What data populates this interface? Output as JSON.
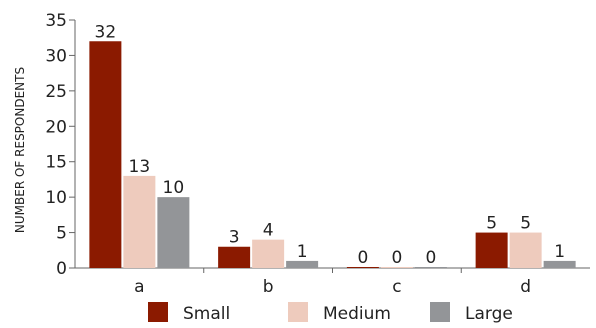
{
  "chart_data": {
    "type": "bar",
    "title": "",
    "xlabel": "",
    "ylabel": "NUMBER OF RESPONDENTS",
    "ylim": [
      0,
      35
    ],
    "yticks": [
      0,
      5,
      10,
      15,
      20,
      25,
      30,
      35
    ],
    "categories": [
      "a",
      "b",
      "c",
      "d"
    ],
    "series": [
      {
        "name": "Small",
        "color": "#8b1a00",
        "values": [
          32,
          3,
          0,
          5
        ]
      },
      {
        "name": "Medium",
        "color": "#eecbbd",
        "values": [
          13,
          4,
          0,
          5
        ]
      },
      {
        "name": "Large",
        "color": "#939598",
        "values": [
          10,
          1,
          0,
          1
        ]
      }
    ],
    "legend_position": "bottom",
    "grid": false
  }
}
